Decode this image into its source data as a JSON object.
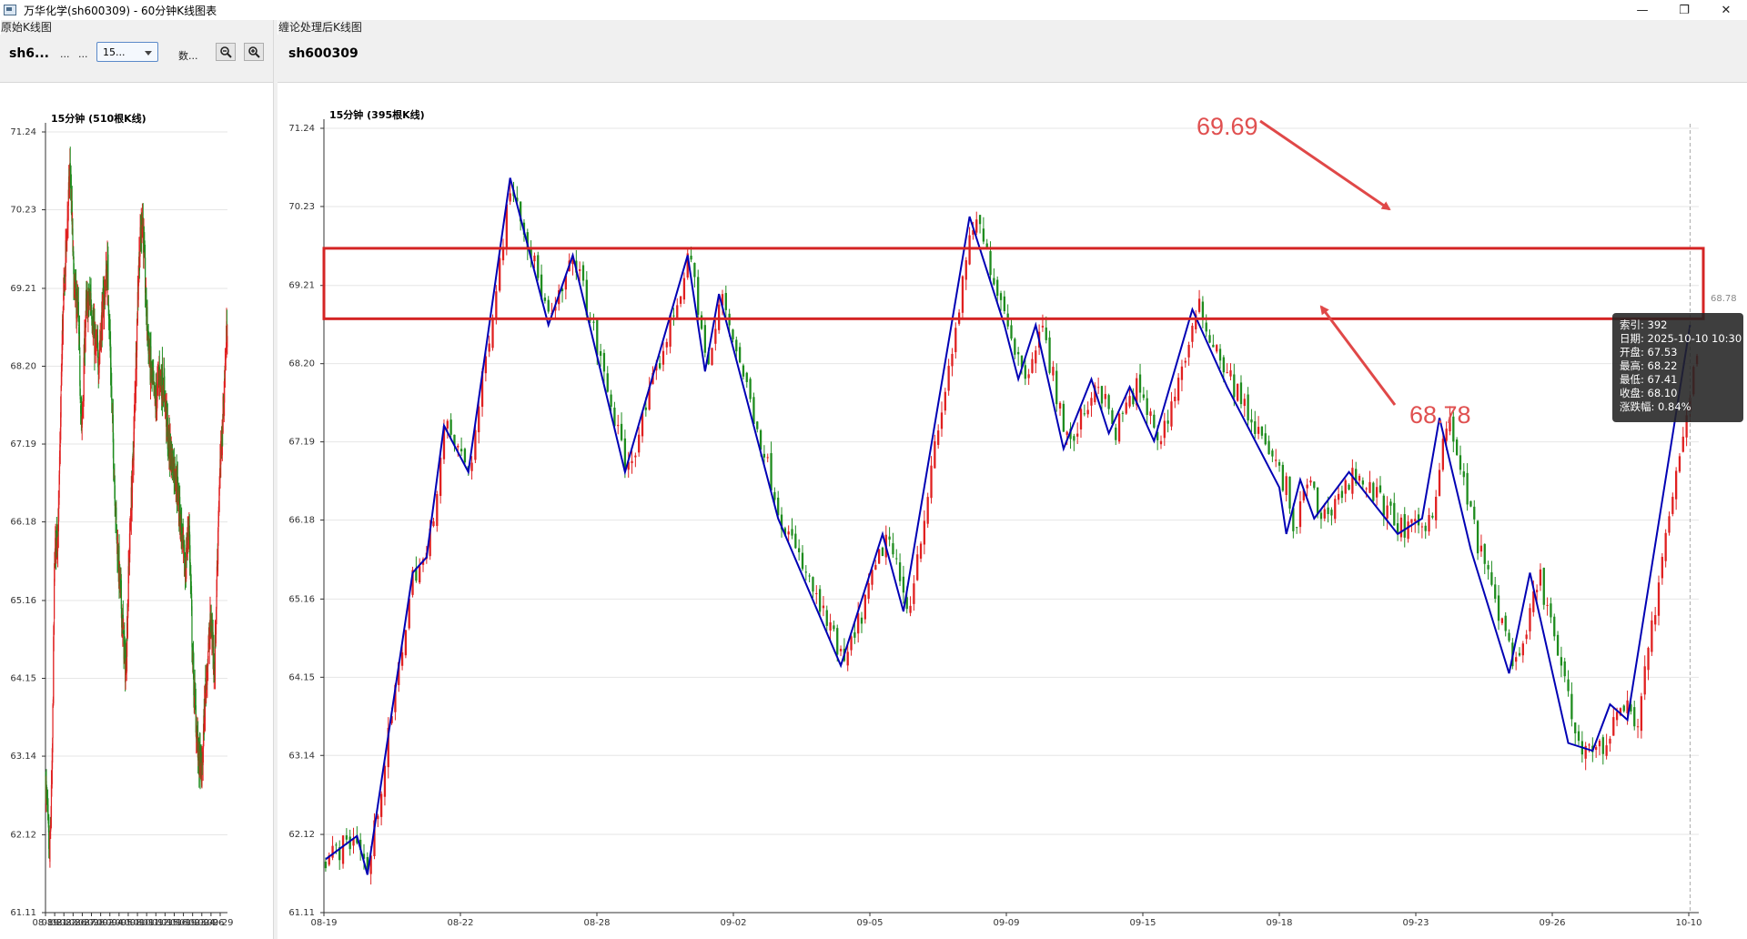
{
  "window": {
    "title": "万华化学(sh600309) - 60分钟K线图表",
    "controls": [
      "—",
      "❐",
      "✕"
    ]
  },
  "left_panel": {
    "group_title": "原始K线图",
    "symbol": "sh6...",
    "dots1": "...",
    "dots2": "...",
    "period": "15...",
    "data_btn": "数...",
    "zoom_out_icon": "zoom-out-icon",
    "zoom_in_icon": "zoom-in-icon"
  },
  "right_panel": {
    "group_title": "缠论处理后K线图",
    "symbol": "sh600309"
  },
  "tooltip": {
    "lines": [
      "索引: 392",
      "日期: 2025-10-10 10:30",
      "开盘: 67.53",
      "最高: 68.22",
      "最低: 67.41",
      "收盘: 68.10",
      "涨跌幅: 0.84%"
    ]
  },
  "price_marker": "68.78",
  "annotations": {
    "upper_value": "69.69",
    "lower_value": "68.78",
    "box_color": "#d42424",
    "arrow_color": "#e04848"
  },
  "colors": {
    "up": "#e02020",
    "down": "#1e8c1e",
    "stroke": "#0000b4"
  },
  "chart_data": [
    {
      "type": "candlestick",
      "title": "15分钟 (510根K线)",
      "y_ticks": [
        71.24,
        70.23,
        69.21,
        68.2,
        67.19,
        66.18,
        65.16,
        64.15,
        63.14,
        62.12,
        61.11
      ],
      "ylim": [
        61.11,
        71.24
      ],
      "x_ticks": [
        "08-19",
        "08-21",
        "08-22",
        "08-26",
        "08-27",
        "08-28",
        "09-02",
        "09-04",
        "09-05",
        "09-08",
        "09-10",
        "09-11",
        "09-12",
        "09-15",
        "09-16",
        "09-19",
        "09-23",
        "09-24",
        "09-26",
        "09-29"
      ],
      "path": [
        [
          0,
          62.8
        ],
        [
          6,
          61.8
        ],
        [
          10,
          62.9
        ],
        [
          14,
          65.8
        ],
        [
          20,
          66.2
        ],
        [
          26,
          68.7
        ],
        [
          32,
          69.8
        ],
        [
          38,
          70.8
        ],
        [
          44,
          69.2
        ],
        [
          50,
          68.9
        ],
        [
          56,
          67.3
        ],
        [
          62,
          68.9
        ],
        [
          70,
          69.1
        ],
        [
          76,
          68.5
        ],
        [
          82,
          68.3
        ],
        [
          88,
          68.9
        ],
        [
          96,
          69.5
        ],
        [
          104,
          67.3
        ],
        [
          110,
          66.0
        ],
        [
          118,
          65.0
        ],
        [
          124,
          64.2
        ],
        [
          130,
          65.9
        ],
        [
          136,
          67.1
        ],
        [
          144,
          69.5
        ],
        [
          150,
          70.2
        ],
        [
          156,
          68.9
        ],
        [
          162,
          68.2
        ],
        [
          170,
          67.7
        ],
        [
          176,
          68.1
        ],
        [
          184,
          67.9
        ],
        [
          190,
          67.2
        ],
        [
          196,
          67.0
        ],
        [
          202,
          66.8
        ],
        [
          210,
          66.1
        ],
        [
          216,
          65.5
        ],
        [
          222,
          66.2
        ],
        [
          228,
          64.3
        ],
        [
          236,
          63.2
        ],
        [
          242,
          62.9
        ],
        [
          248,
          64.1
        ],
        [
          256,
          64.9
        ],
        [
          262,
          64.3
        ],
        [
          268,
          66.4
        ],
        [
          276,
          67.8
        ],
        [
          282,
          68.9
        ]
      ],
      "candle_count": 510
    },
    {
      "type": "candlestick",
      "title": "15分钟 (395根K线)",
      "y_ticks": [
        71.24,
        70.23,
        69.21,
        68.2,
        67.19,
        66.18,
        65.16,
        64.15,
        63.14,
        62.12,
        61.11
      ],
      "ylim": [
        61.11,
        71.24
      ],
      "x_ticks": [
        "08-19",
        "08-22",
        "08-28",
        "09-02",
        "09-05",
        "09-09",
        "09-15",
        "09-18",
        "09-23",
        "09-26",
        "10-10"
      ],
      "candle_count": 395,
      "bi_stroke_points": [
        [
          0,
          61.8
        ],
        [
          9,
          62.1
        ],
        [
          12,
          61.6
        ],
        [
          25,
          65.5
        ],
        [
          29,
          65.7
        ],
        [
          34,
          67.4
        ],
        [
          41,
          66.8
        ],
        [
          53,
          70.6
        ],
        [
          64,
          68.7
        ],
        [
          71,
          69.6
        ],
        [
          86,
          66.8
        ],
        [
          104,
          69.6
        ],
        [
          109,
          68.1
        ],
        [
          113,
          69.1
        ],
        [
          130,
          66.2
        ],
        [
          148,
          64.3
        ],
        [
          160,
          66.0
        ],
        [
          166,
          65.0
        ],
        [
          185,
          70.1
        ],
        [
          195,
          68.7
        ],
        [
          199,
          68.0
        ],
        [
          204,
          68.7
        ],
        [
          212,
          67.1
        ],
        [
          220,
          68.0
        ],
        [
          225,
          67.3
        ],
        [
          231,
          67.9
        ],
        [
          238,
          67.2
        ],
        [
          249,
          68.9
        ],
        [
          259,
          67.9
        ],
        [
          274,
          66.6
        ],
        [
          276,
          66.0
        ],
        [
          280,
          66.7
        ],
        [
          284,
          66.2
        ],
        [
          294,
          66.8
        ],
        [
          308,
          66.0
        ],
        [
          315,
          66.2
        ],
        [
          320,
          67.5
        ],
        [
          329,
          65.8
        ],
        [
          340,
          64.2
        ],
        [
          346,
          65.5
        ],
        [
          357,
          63.3
        ],
        [
          364,
          63.2
        ],
        [
          369,
          63.8
        ],
        [
          374,
          63.6
        ],
        [
          392,
          68.7
        ]
      ],
      "hline_band": [
        68.78,
        69.69
      ],
      "crosshair_index": 392
    }
  ]
}
